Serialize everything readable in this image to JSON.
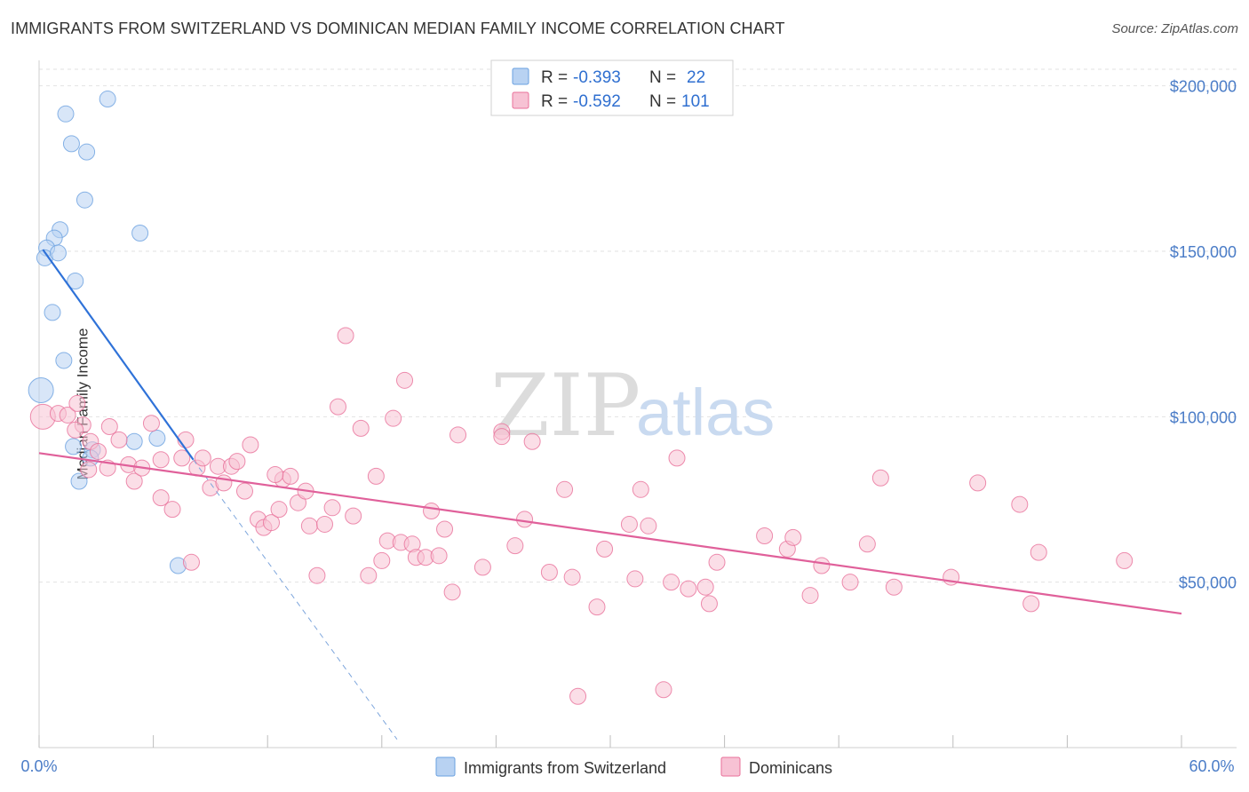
{
  "title": "IMMIGRANTS FROM SWITZERLAND VS DOMINICAN MEDIAN FAMILY INCOME CORRELATION CHART",
  "source": "Source: ZipAtlas.com",
  "watermark": {
    "zip": "ZIP",
    "atlas": "atlas"
  },
  "colors": {
    "blue": "#6aa0e0",
    "blue_fill": "#b8d2f2",
    "pink": "#e8709a",
    "pink_fill": "#f7c2d4",
    "axis_label": "#4a7cc7"
  },
  "legend": {
    "rows": [
      {
        "r_label": "R =",
        "r_value": "-0.393",
        "n_label": "N =",
        "n_value": "22"
      },
      {
        "r_label": "R =",
        "r_value": "-0.592",
        "n_label": "N =",
        "n_value": "101"
      }
    ]
  },
  "chart_data": {
    "type": "scatter",
    "title": "IMMIGRANTS FROM SWITZERLAND VS DOMINICAN MEDIAN FAMILY INCOME CORRELATION CHART",
    "xlabel": "",
    "ylabel": "Median Family Income",
    "xlim": [
      0,
      60
    ],
    "ylim": [
      0,
      205000
    ],
    "x_tick_labels": [
      "0.0%",
      "60.0%"
    ],
    "y_ticks": [
      50000,
      100000,
      150000,
      200000
    ],
    "y_tick_labels": [
      "$50,000",
      "$100,000",
      "$150,000",
      "$200,000"
    ],
    "legend_position": "top-center",
    "series": [
      {
        "name": "Immigrants from Switzerland",
        "color": "blue",
        "r": -0.393,
        "n": 22,
        "trend": {
          "x0": 0.2,
          "y0": 150500,
          "x1": 8.1,
          "y1": 87000,
          "dash_x1": 18.8,
          "dash_y1": 2500
        },
        "points": [
          [
            3.6,
            196000,
            9
          ],
          [
            1.4,
            191500,
            9
          ],
          [
            1.7,
            182500,
            9
          ],
          [
            2.5,
            180000,
            9
          ],
          [
            2.4,
            165500,
            9
          ],
          [
            1.1,
            156500,
            9
          ],
          [
            5.3,
            155500,
            9
          ],
          [
            0.8,
            154000,
            9
          ],
          [
            0.4,
            151000,
            9
          ],
          [
            0.3,
            148000,
            9
          ],
          [
            1.0,
            149500,
            9
          ],
          [
            1.9,
            141000,
            9
          ],
          [
            0.7,
            131500,
            9
          ],
          [
            1.3,
            117000,
            9
          ],
          [
            0.1,
            108000,
            14
          ],
          [
            6.2,
            93500,
            9
          ],
          [
            5.0,
            92500,
            9
          ],
          [
            1.8,
            91000,
            9
          ],
          [
            2.8,
            90000,
            9
          ],
          [
            2.7,
            87500,
            9
          ],
          [
            2.1,
            80500,
            9
          ],
          [
            7.3,
            55000,
            9
          ]
        ]
      },
      {
        "name": "Dominicans",
        "color": "pink",
        "r": -0.592,
        "n": 101,
        "trend": {
          "x0": 0.0,
          "y0": 89000,
          "x1": 60.0,
          "y1": 40500
        },
        "points": [
          [
            0.2,
            100000,
            14
          ],
          [
            1.0,
            101000,
            9
          ],
          [
            1.5,
            100500,
            9
          ],
          [
            2.0,
            104000,
            9
          ],
          [
            2.3,
            97500,
            9
          ],
          [
            2.7,
            92500,
            9
          ],
          [
            3.1,
            89500,
            9
          ],
          [
            3.7,
            97000,
            9
          ],
          [
            3.6,
            84500,
            9
          ],
          [
            2.6,
            84000,
            9
          ],
          [
            4.2,
            93000,
            9
          ],
          [
            4.7,
            85500,
            9
          ],
          [
            5.0,
            80500,
            9
          ],
          [
            5.4,
            84500,
            9
          ],
          [
            5.9,
            98000,
            9
          ],
          [
            6.4,
            87000,
            9
          ],
          [
            6.4,
            75500,
            9
          ],
          [
            7.0,
            72000,
            9
          ],
          [
            7.5,
            87500,
            9
          ],
          [
            7.7,
            93000,
            9
          ],
          [
            8.0,
            56000,
            9
          ],
          [
            8.3,
            84500,
            9
          ],
          [
            8.6,
            87500,
            9
          ],
          [
            9.0,
            78500,
            9
          ],
          [
            9.4,
            85000,
            9
          ],
          [
            9.7,
            80000,
            9
          ],
          [
            10.1,
            85000,
            9
          ],
          [
            10.4,
            86500,
            9
          ],
          [
            10.8,
            77500,
            9
          ],
          [
            11.1,
            91500,
            9
          ],
          [
            11.5,
            69000,
            9
          ],
          [
            11.8,
            66500,
            9
          ],
          [
            12.2,
            68000,
            9
          ],
          [
            12.6,
            72000,
            9
          ],
          [
            12.8,
            81000,
            9
          ],
          [
            13.2,
            82000,
            9
          ],
          [
            13.6,
            74000,
            9
          ],
          [
            14.0,
            77500,
            9
          ],
          [
            14.2,
            67000,
            9
          ],
          [
            14.6,
            52000,
            9
          ],
          [
            15.0,
            67500,
            9
          ],
          [
            15.4,
            72500,
            9
          ],
          [
            15.7,
            103000,
            9
          ],
          [
            16.1,
            124500,
            9
          ],
          [
            16.5,
            70000,
            9
          ],
          [
            16.9,
            96500,
            9
          ],
          [
            17.3,
            52000,
            9
          ],
          [
            17.7,
            82000,
            9
          ],
          [
            18.0,
            56500,
            9
          ],
          [
            18.3,
            62500,
            9
          ],
          [
            18.6,
            99500,
            9
          ],
          [
            19.0,
            62000,
            9
          ],
          [
            19.2,
            111000,
            9
          ],
          [
            19.6,
            61500,
            9
          ],
          [
            19.8,
            57500,
            9
          ],
          [
            20.3,
            57500,
            9
          ],
          [
            20.6,
            71500,
            9
          ],
          [
            21.0,
            58000,
            9
          ],
          [
            21.3,
            66000,
            9
          ],
          [
            21.7,
            47000,
            9
          ],
          [
            22.0,
            94500,
            9
          ],
          [
            23.3,
            54500,
            9
          ],
          [
            24.3,
            95500,
            9
          ],
          [
            25.0,
            61000,
            9
          ],
          [
            25.5,
            69000,
            9
          ],
          [
            25.9,
            92500,
            9
          ],
          [
            26.8,
            53000,
            9
          ],
          [
            27.6,
            78000,
            9
          ],
          [
            28.0,
            51500,
            9
          ],
          [
            29.3,
            42500,
            9
          ],
          [
            29.7,
            60000,
            9
          ],
          [
            28.3,
            15500,
            9
          ],
          [
            31.0,
            67500,
            9
          ],
          [
            31.3,
            51000,
            9
          ],
          [
            31.6,
            78000,
            9
          ],
          [
            32.0,
            67000,
            9
          ],
          [
            32.8,
            17500,
            9
          ],
          [
            33.2,
            50000,
            9
          ],
          [
            33.5,
            87500,
            9
          ],
          [
            34.1,
            48000,
            9
          ],
          [
            35.0,
            48500,
            9
          ],
          [
            35.2,
            43500,
            9
          ],
          [
            35.6,
            56000,
            9
          ],
          [
            38.1,
            64000,
            9
          ],
          [
            39.3,
            60000,
            9
          ],
          [
            39.6,
            63500,
            9
          ],
          [
            40.5,
            46000,
            9
          ],
          [
            41.1,
            55000,
            9
          ],
          [
            42.6,
            50000,
            9
          ],
          [
            43.5,
            61500,
            9
          ],
          [
            44.2,
            81500,
            9
          ],
          [
            44.9,
            48500,
            9
          ],
          [
            47.9,
            51500,
            9
          ],
          [
            49.3,
            80000,
            9
          ],
          [
            51.5,
            73500,
            9
          ],
          [
            52.1,
            43500,
            9
          ],
          [
            52.5,
            59000,
            9
          ],
          [
            57.0,
            56500,
            9
          ],
          [
            1.9,
            96000,
            9
          ],
          [
            12.4,
            82500,
            9
          ],
          [
            24.3,
            94000,
            9
          ]
        ]
      }
    ]
  },
  "bottom_legend": [
    {
      "label": "Immigrants from Switzerland"
    },
    {
      "label": "Dominicans"
    }
  ]
}
